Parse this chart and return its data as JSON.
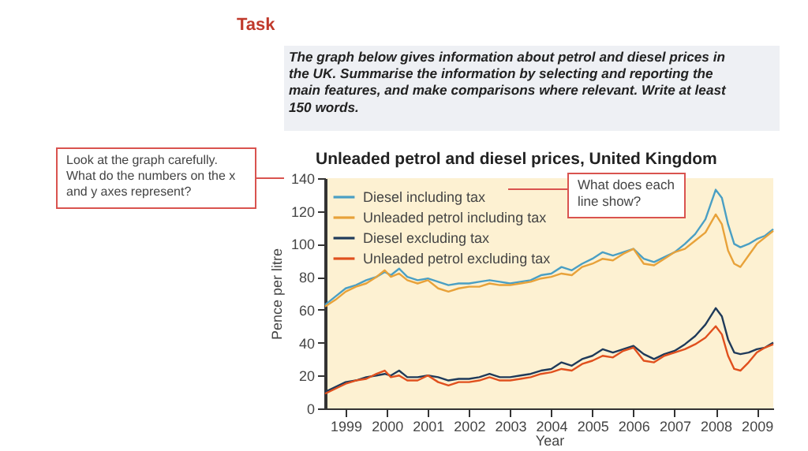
{
  "chart_data": {
    "type": "line",
    "title": "Unleaded petrol and diesel prices, United Kingdom",
    "xlabel": "Year",
    "ylabel": "Pence per litre",
    "annotations": [
      "Task",
      "The graph below gives information about petrol and diesel prices in the UK. Summarise the information by selecting and reporting the main features, and make comparisons where relevant. Write at least 150 words.",
      "Look at the graph carefully. What do the numbers on the x and y axes represent?",
      "What does each line show?"
    ],
    "x": [
      1999.0,
      1999.25,
      1999.5,
      1999.75,
      2000.0,
      2000.25,
      2000.45,
      2000.6,
      2000.8,
      2001.0,
      2001.25,
      2001.5,
      2001.75,
      2002.0,
      2002.25,
      2002.5,
      2002.75,
      2003.0,
      2003.25,
      2003.5,
      2003.75,
      2004.0,
      2004.25,
      2004.5,
      2004.75,
      2005.0,
      2005.25,
      2005.5,
      2005.75,
      2006.0,
      2006.25,
      2006.5,
      2006.75,
      2007.0,
      2007.25,
      2007.5,
      2007.75,
      2008.0,
      2008.25,
      2008.5,
      2008.65,
      2008.8,
      2008.95,
      2009.1,
      2009.3,
      2009.5,
      2009.7,
      2009.9
    ],
    "series": [
      {
        "name": "Diesel including tax",
        "color": "#4a9fc4",
        "values": [
          63,
          68,
          73,
          75,
          78,
          80,
          83,
          81,
          85,
          80,
          78,
          79,
          77,
          75,
          76,
          76,
          77,
          78,
          77,
          76,
          77,
          78,
          81,
          82,
          86,
          84,
          88,
          91,
          95,
          93,
          95,
          97,
          91,
          89,
          92,
          95,
          100,
          106,
          115,
          133,
          128,
          112,
          100,
          98,
          100,
          103,
          105,
          109
        ]
      },
      {
        "name": "Unleaded petrol including tax",
        "color": "#e8a23a",
        "values": [
          62,
          66,
          71,
          74,
          76,
          80,
          84,
          80,
          82,
          78,
          76,
          78,
          73,
          71,
          73,
          74,
          74,
          76,
          75,
          75,
          76,
          77,
          79,
          80,
          82,
          81,
          86,
          88,
          91,
          90,
          94,
          97,
          88,
          87,
          91,
          95,
          97,
          102,
          107,
          118,
          112,
          96,
          88,
          86,
          93,
          100,
          104,
          108
        ]
      },
      {
        "name": "Diesel excluding tax",
        "color": "#1f3a5a",
        "values": [
          10,
          13,
          16,
          17,
          19,
          20,
          21,
          20,
          23,
          19,
          19,
          20,
          19,
          17,
          18,
          18,
          19,
          21,
          19,
          19,
          20,
          21,
          23,
          24,
          28,
          26,
          30,
          32,
          36,
          34,
          36,
          38,
          33,
          30,
          33,
          35,
          39,
          44,
          51,
          61,
          56,
          42,
          34,
          33,
          34,
          36,
          37,
          40
        ]
      },
      {
        "name": "Unleaded petrol excluding tax",
        "color": "#e0501e",
        "values": [
          9,
          12,
          15,
          17,
          18,
          21,
          23,
          19,
          20,
          17,
          17,
          20,
          16,
          14,
          16,
          16,
          17,
          19,
          17,
          17,
          18,
          19,
          21,
          22,
          24,
          23,
          27,
          29,
          32,
          31,
          35,
          37,
          29,
          28,
          32,
          34,
          36,
          39,
          43,
          50,
          45,
          32,
          24,
          23,
          28,
          34,
          37,
          39
        ]
      }
    ],
    "xlim": [
      1999,
      2009.9
    ],
    "xticks": [
      {
        "value": 1999.5,
        "label": "1999"
      },
      {
        "value": 2000.5,
        "label": "2000"
      },
      {
        "value": 2001.5,
        "label": "2001"
      },
      {
        "value": 2002.5,
        "label": "2002"
      },
      {
        "value": 2003.5,
        "label": "2003"
      },
      {
        "value": 2004.5,
        "label": "2004"
      },
      {
        "value": 2005.5,
        "label": "2005"
      },
      {
        "value": 2006.5,
        "label": "2006"
      },
      {
        "value": 2007.5,
        "label": "2007"
      },
      {
        "value": 2008.5,
        "label": "2008"
      },
      {
        "value": 2009.5,
        "label": "2009"
      }
    ],
    "ylim": [
      0,
      140
    ],
    "yticks": [
      0,
      20,
      40,
      60,
      80,
      100,
      120,
      140
    ],
    "grid": false,
    "legend": "top left",
    "marker": "none",
    "line_style": "solid"
  }
}
